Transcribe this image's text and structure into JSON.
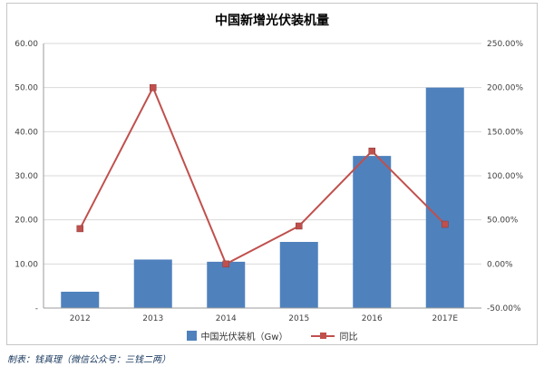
{
  "title": "中国新增光伏装机量",
  "footer": "制表：钱真理（微信公众号：三钱二两）",
  "legend": [
    {
      "label": "中国光伏装机（Gw）",
      "type": "bar",
      "color": "#4f81bd"
    },
    {
      "label": "同比",
      "type": "line",
      "color": "#c0504d"
    }
  ],
  "chart_data": {
    "type": "bar+line combo",
    "title": "中国新增光伏装机量",
    "categories": [
      "2012",
      "2013",
      "2014",
      "2015",
      "2016",
      "2017E"
    ],
    "series": [
      {
        "name": "中国光伏装机（Gw）",
        "type": "bar",
        "axis": "left",
        "color": "#4f81bd",
        "values": [
          3.7,
          11,
          10.5,
          15,
          34.5,
          50
        ]
      },
      {
        "name": "同比",
        "type": "line",
        "axis": "right",
        "color": "#c0504d",
        "values": [
          40,
          200,
          0,
          43,
          128,
          45
        ]
      }
    ],
    "left_axis": {
      "min": 0,
      "max": 60,
      "tick_labels": [
        "-",
        "10.00",
        "20.00",
        "30.00",
        "40.00",
        "50.00",
        "60.00"
      ]
    },
    "right_axis": {
      "min": -50,
      "max": 250,
      "tick_labels": [
        "-50.00%",
        "0.00%",
        "50.00%",
        "100.00%",
        "150.00%",
        "200.00%",
        "250.00%"
      ]
    },
    "grid": true,
    "legend_position": "bottom",
    "colors": {
      "gridline": "#d9d9d9",
      "axis_line": "#9b9b9b",
      "tick_text": "#404040"
    }
  }
}
